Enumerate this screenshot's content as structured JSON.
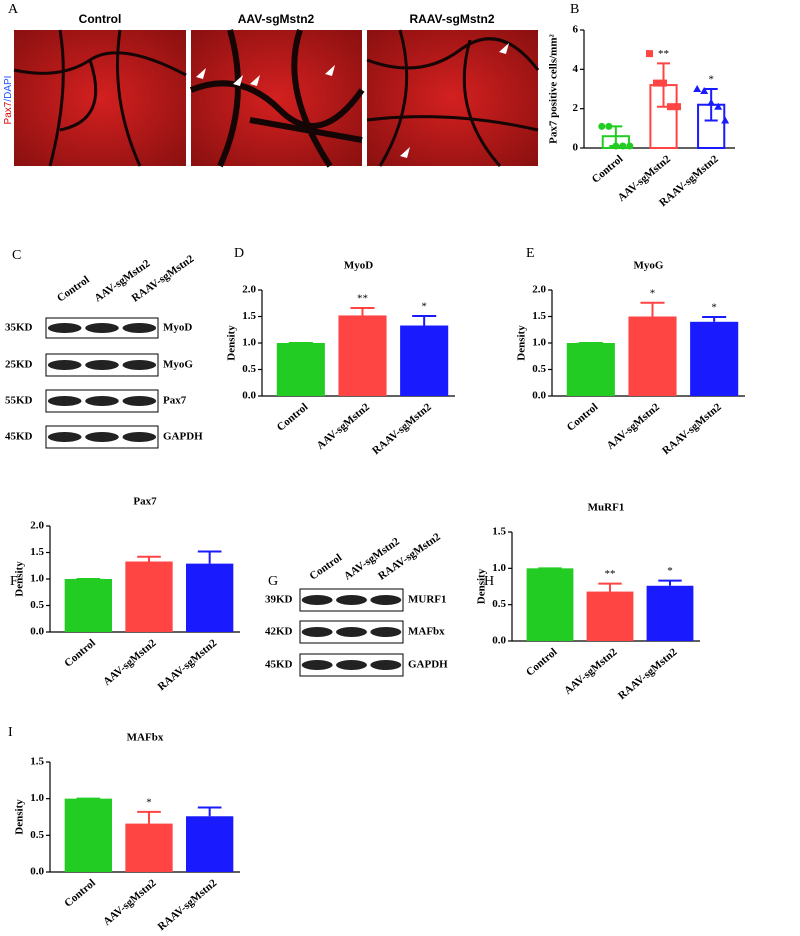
{
  "panel_letters": [
    "A",
    "B",
    "C",
    "D",
    "E",
    "F",
    "G",
    "H",
    "I"
  ],
  "micrographs": {
    "titles": [
      "Control",
      "AAV-sgMstn2",
      "RAAV-sgMstn2"
    ],
    "stain_label": [
      "Pax7",
      "/DAPI"
    ]
  },
  "blots": [
    {
      "lanes": [
        "Control",
        "AAV-sgMstn2",
        "RAAV-sgMstn2"
      ],
      "rows": [
        {
          "size": "35KD",
          "protein": "MyoD"
        },
        {
          "size": "25KD",
          "protein": "MyoG"
        },
        {
          "size": "55KD",
          "protein": "Pax7"
        },
        {
          "size": "45KD",
          "protein": "GAPDH"
        }
      ]
    },
    {
      "lanes": [
        "Control",
        "AAV-sgMstn2",
        "RAAV-sgMstn2"
      ],
      "rows": [
        {
          "size": "39KD",
          "protein": "MURF1"
        },
        {
          "size": "42KD",
          "protein": "MAFbx"
        },
        {
          "size": "45KD",
          "protein": "GAPDH"
        }
      ]
    }
  ],
  "chart_data": [
    {
      "type": "bar",
      "hollow": true,
      "ylabel": "Pax7 positive cells/mm²",
      "categories": [
        "Control",
        "AAV-sgMstn2",
        "RAAV-sgMstn2"
      ],
      "colors": [
        "#22cc22",
        "#ff4444",
        "#1a1aff"
      ],
      "values": [
        0.6,
        3.2,
        2.2
      ],
      "errors": [
        0.5,
        1.1,
        0.8
      ],
      "points": [
        [
          1.1,
          1.1,
          0.1,
          0.1,
          0.1
        ],
        [
          4.8,
          3.3,
          3.3,
          2.1,
          2.1
        ],
        [
          3.0,
          2.9,
          2.3,
          2.1,
          1.4
        ]
      ],
      "significance": [
        null,
        "**",
        "*"
      ],
      "ylim": [
        0,
        6
      ],
      "yticks": [
        0,
        2,
        4,
        6
      ]
    },
    {
      "type": "bar",
      "title": "MyoD",
      "ylabel": "Density",
      "categories": [
        "Control",
        "AAV-sgMstn2",
        "RAAV-sgMstn2"
      ],
      "colors": [
        "#22cc22",
        "#ff4444",
        "#1a1aff"
      ],
      "values": [
        1.0,
        1.52,
        1.33
      ],
      "errors": [
        0,
        0.14,
        0.18
      ],
      "significance": [
        null,
        "**",
        "*"
      ],
      "ylim": [
        0,
        2
      ],
      "yticks": [
        {
          "value": 0,
          "label": "0.0"
        },
        {
          "value": 0.5,
          "label": "0.5"
        },
        {
          "value": 1,
          "label": "1.0"
        },
        {
          "value": 1.5,
          "label": "1.5"
        },
        {
          "value": 2,
          "label": "2.0"
        }
      ]
    },
    {
      "type": "bar",
      "title": "MyoG",
      "ylabel": "Density",
      "categories": [
        "Control",
        "AAV-sgMstn2",
        "RAAV-sgMstn2"
      ],
      "colors": [
        "#22cc22",
        "#ff4444",
        "#1a1aff"
      ],
      "values": [
        1.0,
        1.5,
        1.4
      ],
      "errors": [
        0,
        0.26,
        0.09
      ],
      "significance": [
        null,
        "*",
        "*"
      ],
      "ylim": [
        0,
        2
      ],
      "yticks": [
        {
          "value": 0,
          "label": "0.0"
        },
        {
          "value": 0.5,
          "label": "0.5"
        },
        {
          "value": 1,
          "label": "1.0"
        },
        {
          "value": 1.5,
          "label": "1.5"
        },
        {
          "value": 2,
          "label": "2.0"
        }
      ]
    },
    {
      "type": "bar",
      "title": "Pax7",
      "ylabel": "Density",
      "categories": [
        "Control",
        "AAV-sgMstn2",
        "RAAV-sgMstn2"
      ],
      "colors": [
        "#22cc22",
        "#ff4444",
        "#1a1aff"
      ],
      "values": [
        1.0,
        1.33,
        1.29
      ],
      "errors": [
        0,
        0.09,
        0.23
      ],
      "ylim": [
        0,
        2
      ],
      "yticks": [
        {
          "value": 0,
          "label": "0.0"
        },
        {
          "value": 0.5,
          "label": "0.5"
        },
        {
          "value": 1,
          "label": "1.0"
        },
        {
          "value": 1.5,
          "label": "1.5"
        },
        {
          "value": 2,
          "label": "2.0"
        }
      ]
    },
    {
      "type": "bar",
      "title": "MuRF1",
      "ylabel": "Density",
      "categories": [
        "Control",
        "AAV-sgMstn2",
        "RAAV-sgMstn2"
      ],
      "colors": [
        "#22cc22",
        "#ff4444",
        "#1a1aff"
      ],
      "values": [
        1.0,
        0.68,
        0.76
      ],
      "errors": [
        0,
        0.11,
        0.07
      ],
      "significance": [
        null,
        "**",
        "*"
      ],
      "ylim": [
        0,
        1.5
      ],
      "yticks": [
        {
          "value": 0,
          "label": "0.0"
        },
        {
          "value": 0.5,
          "label": "0.5"
        },
        {
          "value": 1,
          "label": "1.0"
        },
        {
          "value": 1.5,
          "label": "1.5"
        }
      ]
    },
    {
      "type": "bar",
      "title": "MAFbx",
      "ylabel": "Density",
      "categories": [
        "Control",
        "AAV-sgMstn2",
        "RAAV-sgMstn2"
      ],
      "colors": [
        "#22cc22",
        "#ff4444",
        "#1a1aff"
      ],
      "values": [
        1.0,
        0.66,
        0.76
      ],
      "errors": [
        0,
        0.16,
        0.12
      ],
      "significance": [
        null,
        "*",
        null
      ],
      "ylim": [
        0,
        1.5
      ],
      "yticks": [
        {
          "value": 0,
          "label": "0.0"
        },
        {
          "value": 0.5,
          "label": "0.5"
        },
        {
          "value": 1,
          "label": "1.0"
        },
        {
          "value": 1.5,
          "label": "1.5"
        }
      ]
    }
  ]
}
